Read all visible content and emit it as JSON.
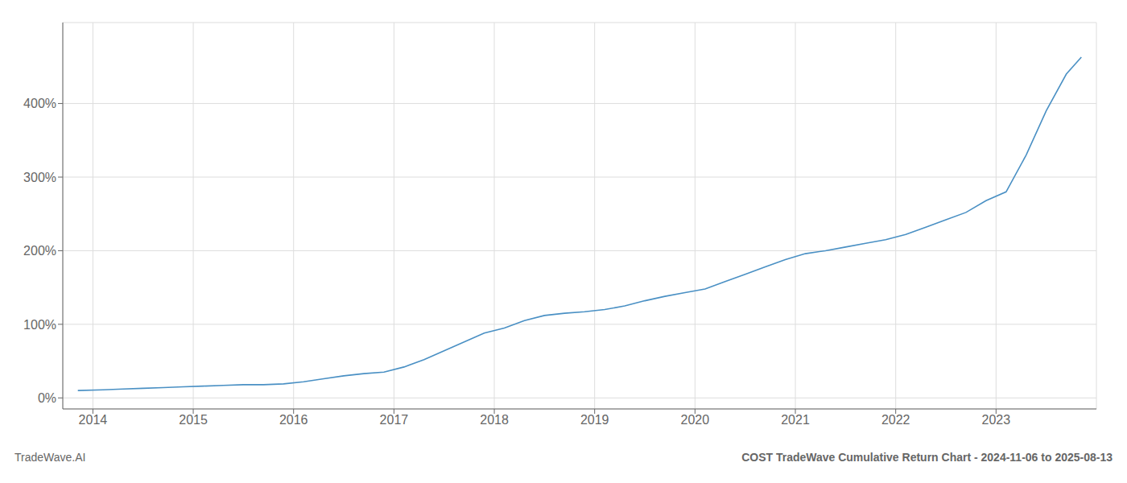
{
  "chart_data": {
    "type": "line",
    "title": "COST TradeWave Cumulative Return Chart - 2024-11-06 to 2025-08-13",
    "annotations": [
      "TradeWave.AI"
    ],
    "x": [
      2013.85,
      2014.1,
      2014.3,
      2014.5,
      2014.7,
      2014.9,
      2015.1,
      2015.3,
      2015.5,
      2015.7,
      2015.9,
      2016.1,
      2016.3,
      2016.5,
      2016.7,
      2016.9,
      2017.1,
      2017.3,
      2017.5,
      2017.7,
      2017.9,
      2018.1,
      2018.3,
      2018.5,
      2018.7,
      2018.9,
      2019.1,
      2019.3,
      2019.5,
      2019.7,
      2019.9,
      2020.1,
      2020.3,
      2020.5,
      2020.7,
      2020.9,
      2021.1,
      2021.3,
      2021.5,
      2021.7,
      2021.9,
      2022.1,
      2022.3,
      2022.5,
      2022.7,
      2022.9,
      2023.1,
      2023.3,
      2023.5,
      2023.7,
      2023.85
    ],
    "values": [
      10,
      11,
      12,
      13,
      14,
      15,
      16,
      17,
      18,
      18,
      19,
      22,
      26,
      30,
      33,
      35,
      42,
      52,
      64,
      76,
      88,
      95,
      105,
      112,
      115,
      117,
      120,
      125,
      132,
      138,
      143,
      148,
      158,
      168,
      178,
      188,
      196,
      200,
      205,
      210,
      215,
      222,
      232,
      242,
      252,
      268,
      280,
      330,
      390,
      440,
      463
    ],
    "color": "#4a90c4",
    "xlim": [
      2013.7,
      2024.0
    ],
    "xticks": [
      2014,
      2015,
      2016,
      2017,
      2018,
      2019,
      2020,
      2021,
      2022,
      2023
    ],
    "ylim": [
      -15,
      510
    ],
    "yticks": [
      {
        "value": 0,
        "label": "0%"
      },
      {
        "value": 100,
        "label": "100%"
      },
      {
        "value": 200,
        "label": "200%"
      },
      {
        "value": 300,
        "label": "300%"
      },
      {
        "value": 400,
        "label": "400%"
      }
    ],
    "grid": true
  }
}
